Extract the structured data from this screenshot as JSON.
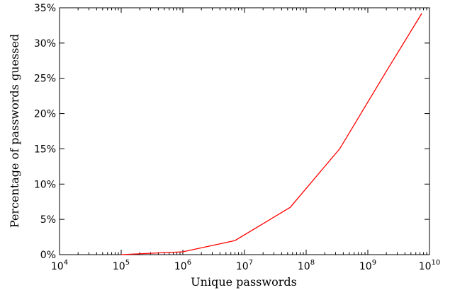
{
  "chart_data": {
    "type": "line",
    "xlabel": "Unique passwords",
    "ylabel": "Percentage of passwords guessed",
    "xscale": "log",
    "xlim": [
      10000,
      10000000000
    ],
    "ylim": [
      0,
      35
    ],
    "grid": false,
    "x_tick_labels": [
      {
        "base": "10",
        "exp": "4"
      },
      {
        "base": "10",
        "exp": "5"
      },
      {
        "base": "10",
        "exp": "6"
      },
      {
        "base": "10",
        "exp": "7"
      },
      {
        "base": "10",
        "exp": "8"
      },
      {
        "base": "10",
        "exp": "9"
      },
      {
        "base": "10",
        "exp": "10"
      }
    ],
    "y_tick_labels": [
      "0%",
      "5%",
      "10%",
      "15%",
      "20%",
      "25%",
      "30%",
      "35%"
    ],
    "series": [
      {
        "color": "#ff0000",
        "x": [
          100000,
          1000000,
          7000000,
          55000000,
          350000000,
          2000000000,
          7500000000
        ],
        "y": [
          0.0,
          0.4,
          2.0,
          6.7,
          15.0,
          26.0,
          34.2
        ]
      }
    ]
  }
}
